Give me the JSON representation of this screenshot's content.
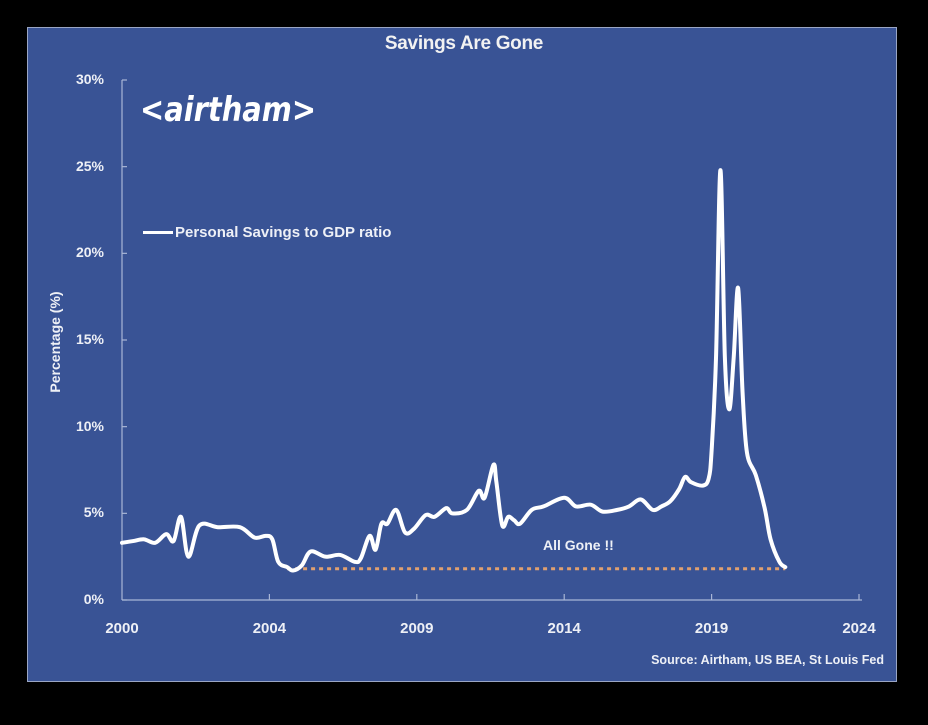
{
  "title": "Savings Are Gone",
  "logo": "<airtham>",
  "legend": {
    "label": "Personal Savings to GDP ratio",
    "color": "#ffffff"
  },
  "annotation": "All Gone !!",
  "source": "Source: Airtham, US BEA, St Louis Fed",
  "colors": {
    "background": "#395395",
    "frame": "#000000",
    "line": "#ffffff",
    "reference_line": "#e0a070",
    "axis": "#a9b6d6"
  },
  "chart_data": {
    "type": "line",
    "title": "Savings Are Gone",
    "xlabel": "",
    "ylabel": "Percentage (%)",
    "ylim": [
      0,
      30
    ],
    "yticks": [
      "0%",
      "5%",
      "10%",
      "15%",
      "20%",
      "25%",
      "30%"
    ],
    "xticks": [
      "2000",
      "2004",
      "2009",
      "2014",
      "2019",
      "2024"
    ],
    "grid": false,
    "legend_position": "upper-left",
    "series": [
      {
        "name": "Personal Savings to GDP ratio",
        "points": [
          [
            2000.0,
            3.3
          ],
          [
            2000.3,
            3.4
          ],
          [
            2000.6,
            3.5
          ],
          [
            2000.9,
            3.3
          ],
          [
            2001.2,
            3.8
          ],
          [
            2001.4,
            3.4
          ],
          [
            2001.6,
            4.8
          ],
          [
            2001.8,
            2.5
          ],
          [
            2002.1,
            4.3
          ],
          [
            2002.6,
            4.2
          ],
          [
            2003.2,
            4.2
          ],
          [
            2003.6,
            3.6
          ],
          [
            2003.9,
            3.7
          ],
          [
            2004.1,
            3.5
          ],
          [
            2004.3,
            2.2
          ],
          [
            2004.6,
            1.9
          ],
          [
            2004.8,
            1.7
          ],
          [
            2005.1,
            2.0
          ],
          [
            2005.4,
            2.8
          ],
          [
            2005.9,
            2.5
          ],
          [
            2006.4,
            2.6
          ],
          [
            2006.9,
            2.2
          ],
          [
            2007.1,
            2.4
          ],
          [
            2007.4,
            3.7
          ],
          [
            2007.6,
            2.9
          ],
          [
            2007.8,
            4.4
          ],
          [
            2008.0,
            4.4
          ],
          [
            2008.3,
            5.2
          ],
          [
            2008.6,
            3.9
          ],
          [
            2008.9,
            4.1
          ],
          [
            2009.3,
            4.9
          ],
          [
            2009.6,
            4.8
          ],
          [
            2010.0,
            5.3
          ],
          [
            2010.2,
            5.0
          ],
          [
            2010.7,
            5.2
          ],
          [
            2011.1,
            6.3
          ],
          [
            2011.3,
            5.9
          ],
          [
            2011.6,
            7.8
          ],
          [
            2011.7,
            6.8
          ],
          [
            2011.9,
            4.3
          ],
          [
            2012.1,
            4.8
          ],
          [
            2012.3,
            4.6
          ],
          [
            2012.5,
            4.4
          ],
          [
            2012.9,
            5.2
          ],
          [
            2013.3,
            5.4
          ],
          [
            2014.0,
            5.9
          ],
          [
            2014.4,
            5.4
          ],
          [
            2014.9,
            5.5
          ],
          [
            2015.3,
            5.1
          ],
          [
            2015.8,
            5.2
          ],
          [
            2016.2,
            5.4
          ],
          [
            2016.6,
            5.8
          ],
          [
            2017.0,
            5.2
          ],
          [
            2017.3,
            5.4
          ],
          [
            2017.6,
            5.7
          ],
          [
            2017.9,
            6.4
          ],
          [
            2018.1,
            7.1
          ],
          [
            2018.3,
            6.8
          ],
          [
            2018.7,
            6.6
          ],
          [
            2018.9,
            7.0
          ],
          [
            2019.0,
            8.6
          ],
          [
            2019.15,
            14.0
          ],
          [
            2019.3,
            24.8
          ],
          [
            2019.45,
            14.0
          ],
          [
            2019.6,
            11.0
          ],
          [
            2019.75,
            14.0
          ],
          [
            2019.9,
            18.0
          ],
          [
            2020.05,
            12.0
          ],
          [
            2020.2,
            8.5
          ],
          [
            2020.5,
            7.2
          ],
          [
            2020.8,
            5.3
          ],
          [
            2021.0,
            3.5
          ],
          [
            2021.3,
            2.2
          ],
          [
            2021.5,
            1.9
          ]
        ]
      }
    ],
    "reference_lines": [
      {
        "type": "horizontal",
        "value": 1.8,
        "x_start": 2004.6,
        "x_end": 2021.5,
        "style": "dotted",
        "color": "#e0a070"
      }
    ],
    "annotations": [
      {
        "text": "All Gone !!",
        "x": 2014.0,
        "y": 3.2
      }
    ]
  }
}
